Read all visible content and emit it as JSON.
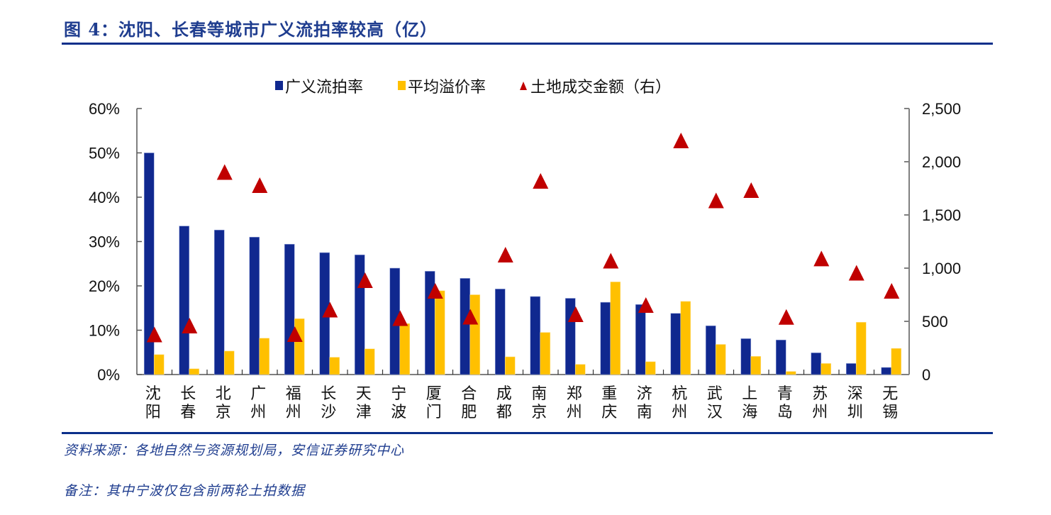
{
  "title": "图 4：沈阳、长春等城市广义流拍率较高（亿）",
  "footer": {
    "source": "资料来源：各地自然与资源规划局，安信证券研究中心",
    "remark": "备注：其中宁波仅包含前两轮土拍数据"
  },
  "colors": {
    "rule": "#0b2f8a",
    "title": "#1f3d8f",
    "blue_bar": "#10288f",
    "yellow_bar": "#ffc000",
    "triangle": "#c00000",
    "axis": "#808080"
  },
  "chart_data": {
    "type": "bar",
    "title": "沈阳、长春等城市广义流拍率较高（亿）",
    "xlabel": "",
    "ylabel": "",
    "y2label": "",
    "categories": [
      "沈阳",
      "长春",
      "北京",
      "广州",
      "福州",
      "长沙",
      "天津",
      "宁波",
      "厦门",
      "合肥",
      "成都",
      "南京",
      "郑州",
      "重庆",
      "济南",
      "杭州",
      "武汉",
      "上海",
      "青岛",
      "苏州",
      "深圳",
      "无锡"
    ],
    "series": [
      {
        "name": "广义流拍率",
        "type": "bar",
        "axis": "left",
        "unit": "%",
        "values": [
          50.0,
          33.5,
          32.6,
          31.0,
          29.4,
          27.5,
          27.0,
          24.0,
          23.3,
          21.7,
          19.3,
          17.6,
          17.2,
          16.3,
          15.8,
          13.8,
          11.0,
          8.1,
          7.8,
          4.9,
          2.5,
          1.6
        ]
      },
      {
        "name": "平均溢价率",
        "type": "bar",
        "axis": "left",
        "unit": "%",
        "values": [
          4.5,
          1.3,
          5.3,
          8.2,
          12.6,
          3.9,
          5.8,
          11.5,
          18.9,
          18.0,
          4.0,
          9.5,
          2.3,
          20.9,
          2.9,
          16.5,
          6.8,
          4.1,
          0.7,
          2.5,
          11.8,
          5.9
        ]
      },
      {
        "name": "土地成交金额（右）",
        "type": "scatter",
        "marker": "triangle",
        "axis": "right",
        "unit": "亿",
        "values": [
          377,
          460,
          1903,
          1780,
          380,
          610,
          887,
          530,
          787,
          543,
          1127,
          1820,
          567,
          1070,
          653,
          2200,
          1637,
          1733,
          542,
          1091,
          957,
          787
        ]
      }
    ],
    "ylim": [
      0,
      60
    ],
    "yticks": [
      "0%",
      "10%",
      "20%",
      "30%",
      "40%",
      "50%",
      "60%"
    ],
    "y2lim": [
      0,
      2500
    ],
    "y2ticks": [
      "0",
      "500",
      "1,000",
      "1,500",
      "2,000",
      "2,500"
    ],
    "grid": false,
    "legend": {
      "position": "top-center",
      "entries": [
        "广义流拍率",
        "平均溢价率",
        "土地成交金额（右）"
      ]
    }
  }
}
